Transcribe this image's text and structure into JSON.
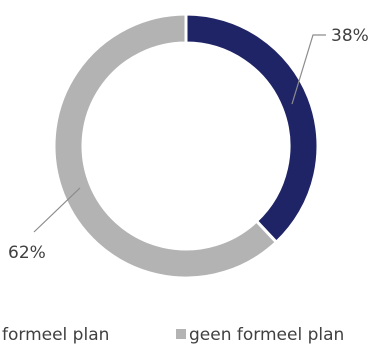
{
  "chart_data": {
    "type": "pie",
    "donut": true,
    "slices": [
      {
        "label": "formeel plan",
        "value": 38,
        "color": "#1f2466"
      },
      {
        "label": "geen formeel plan",
        "value": 62,
        "color": "#b3b3b3"
      }
    ],
    "data_labels": [
      "38%",
      "62%"
    ],
    "legend_position": "bottom"
  }
}
